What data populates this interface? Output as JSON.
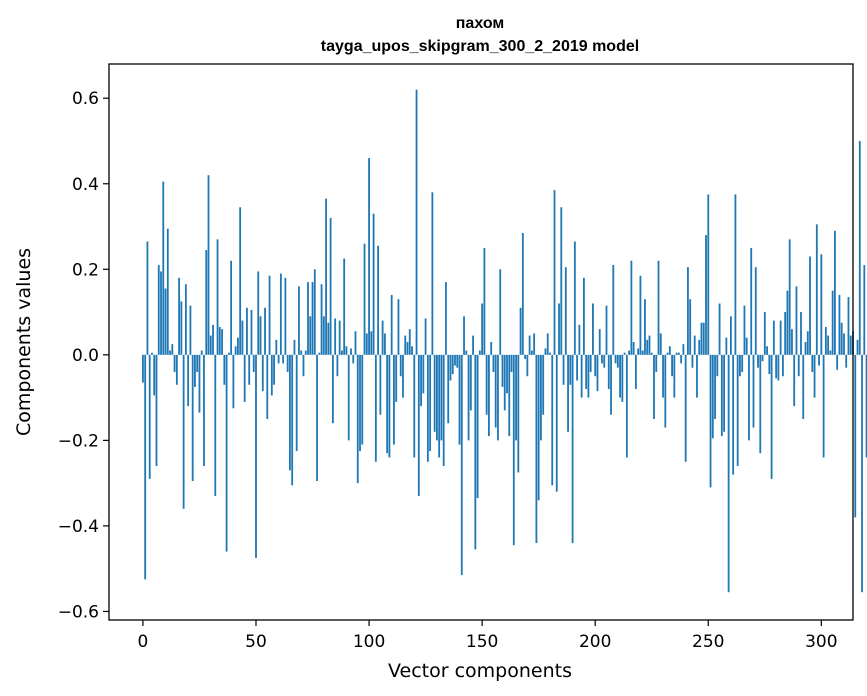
{
  "chart_data": {
    "type": "bar",
    "title_line1": "пахом",
    "title_line2": "tayga_upos_skipgram_300_2_2019 model",
    "xlabel": "Vector components",
    "ylabel": "Components values",
    "xlim": [
      -15,
      314
    ],
    "ylim": [
      -0.62,
      0.68
    ],
    "xticks": [
      0,
      50,
      100,
      150,
      200,
      250,
      300
    ],
    "xtick_labels": [
      "0",
      "50",
      "100",
      "150",
      "200",
      "250",
      "300"
    ],
    "yticks": [
      -0.6,
      -0.4,
      -0.2,
      0.0,
      0.2,
      0.4,
      0.6
    ],
    "ytick_labels": [
      "−0.6",
      "−0.4",
      "−0.2",
      "0.0",
      "0.2",
      "0.4",
      "0.6"
    ],
    "bar_color": "#1f77b4",
    "x_start": 0,
    "values": [
      -0.065,
      -0.525,
      0.265,
      -0.29,
      0.005,
      -0.095,
      -0.26,
      0.21,
      0.195,
      0.405,
      0.155,
      0.295,
      0.01,
      0.025,
      -0.04,
      -0.07,
      0.18,
      0.125,
      -0.36,
      0.165,
      -0.12,
      0.115,
      -0.295,
      -0.075,
      -0.04,
      -0.135,
      0.01,
      -0.26,
      0.245,
      0.42,
      0.045,
      0.07,
      -0.33,
      0.27,
      0.065,
      0.06,
      -0.07,
      -0.46,
      0.005,
      0.22,
      -0.125,
      0.02,
      0.04,
      0.345,
      0.08,
      -0.11,
      0.11,
      -0.07,
      0.105,
      -0.04,
      -0.475,
      0.195,
      0.09,
      -0.085,
      0.11,
      -0.15,
      0.185,
      -0.095,
      -0.07,
      0.035,
      -0.02,
      0.19,
      -0.02,
      0.18,
      -0.04,
      -0.27,
      -0.305,
      0.035,
      -0.225,
      0.16,
      0.01,
      -0.05,
      0.01,
      0.17,
      0.09,
      0.17,
      0.2,
      -0.295,
      0.005,
      0.165,
      0.09,
      0.365,
      0.075,
      0.32,
      -0.16,
      0.085,
      -0.05,
      0.08,
      0.01,
      0.225,
      0.02,
      -0.2,
      0.015,
      -0.02,
      0.055,
      -0.3,
      -0.225,
      -0.21,
      0.26,
      0.05,
      0.46,
      0.055,
      0.33,
      -0.25,
      0.255,
      -0.14,
      0.08,
      0.05,
      -0.23,
      -0.24,
      0.14,
      -0.21,
      -0.11,
      0.13,
      -0.05,
      -0.1,
      0.045,
      0.03,
      0.06,
      0.02,
      -0.24,
      0.62,
      -0.33,
      -0.12,
      -0.09,
      0.085,
      -0.25,
      -0.225,
      0.38,
      -0.18,
      -0.2,
      -0.24,
      -0.2,
      -0.26,
      0.17,
      -0.16,
      -0.06,
      -0.045,
      -0.025,
      -0.03,
      -0.21,
      -0.515,
      0.09,
      0.01,
      -0.2,
      -0.13,
      0.045,
      -0.455,
      -0.335,
      0.01,
      0.12,
      0.25,
      -0.14,
      -0.19,
      0.03,
      -0.04,
      -0.17,
      -0.2,
      0.2,
      -0.075,
      -0.13,
      -0.09,
      -0.19,
      -0.04,
      -0.445,
      -0.2,
      -0.275,
      0.11,
      0.285,
      -0.01,
      -0.05,
      0.045,
      0.01,
      0.05,
      -0.44,
      -0.34,
      -0.2,
      -0.14,
      0.015,
      0.05,
      0.005,
      -0.305,
      0.385,
      -0.32,
      0.12,
      0.345,
      -0.07,
      0.205,
      -0.18,
      -0.07,
      -0.44,
      0.265,
      -0.06,
      0.07,
      -0.1,
      0.18,
      -0.08,
      -0.1,
      -0.04,
      0.12,
      -0.05,
      -0.085,
      0.06,
      -0.02,
      -0.03,
      0.115,
      -0.08,
      -0.14,
      0.21,
      -0.02,
      -0.03,
      -0.1,
      -0.11,
      0.005,
      -0.24,
      0.01,
      0.22,
      0.03,
      -0.08,
      0.015,
      0.185,
      0.01,
      0.13,
      0.035,
      0.045,
      0.005,
      -0.15,
      -0.04,
      0.22,
      0.05,
      -0.1,
      -0.17,
      0.005,
      0.02,
      -0.05,
      -0.1,
      0.005,
      0.005,
      -0.02,
      0.025,
      -0.25,
      0.205,
      0.13,
      -0.03,
      0.045,
      -0.1,
      0.035,
      0.075,
      0.075,
      0.28,
      0.375,
      -0.31,
      -0.195,
      -0.15,
      -0.05,
      0.12,
      -0.19,
      -0.18,
      0.04,
      -0.555,
      0.09,
      -0.28,
      0.375,
      -0.26,
      -0.05,
      -0.04,
      0.115,
      0.04,
      -0.2,
      0.25,
      -0.17,
      0.205,
      -0.03,
      -0.23,
      -0.015,
      0.1,
      0.02,
      -0.045,
      -0.29,
      0.08,
      -0.055,
      -0.06,
      0.08,
      -0.05,
      0.1,
      0.15,
      0.27,
      0.06,
      -0.12,
      0.16,
      -0.05,
      0.1,
      -0.15,
      0.03,
      0.055,
      0.23,
      -0.04,
      -0.1,
      0.305,
      -0.025,
      0.235,
      -0.24,
      0.065,
      0.045,
      0.01,
      0.15,
      0.29,
      -0.035,
      0.14,
      0.075,
      0.05,
      -0.03,
      0.135,
      0.045,
      0.055,
      -0.38,
      0.035,
      0.5,
      -0.555,
      0.21,
      -0.24
    ]
  }
}
